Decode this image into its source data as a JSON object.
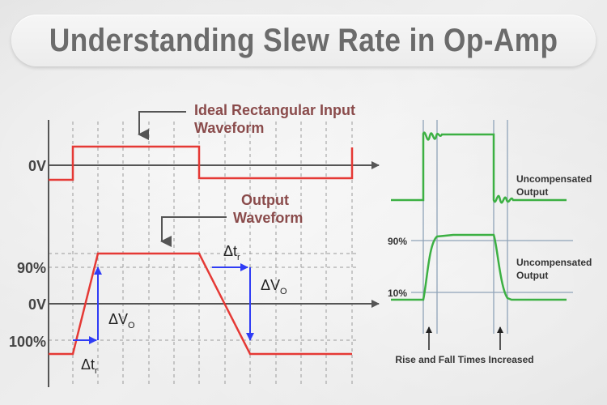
{
  "title": "Understanding Slew Rate in Op-Amp",
  "left": {
    "input_caption_line1": "Ideal Rectangular Input",
    "input_caption_line2": "Waveform",
    "output_caption_line1": "Output",
    "output_caption_line2": "Waveform",
    "label_0v_top": "0V",
    "label_90": "90%",
    "label_0v_bottom": "0V",
    "label_100": "100%",
    "delta_v": "ΔV",
    "delta_v_sub": "O",
    "delta_t": "Δt",
    "delta_t_sub": "r"
  },
  "right": {
    "uncomp_top_line1": "Uncompensated",
    "uncomp_top_line2": "Output",
    "uncomp_bottom_line1": "Uncompensated",
    "uncomp_bottom_line2": "Output",
    "label_90": "90%",
    "label_10": "10%",
    "caption": "Rise and Fall Times Increased"
  },
  "colors": {
    "signal_red": "#e53935",
    "signal_green": "#3cb043",
    "arrow_blue": "#2f3cf5",
    "caption_brown": "#8a4b4b",
    "axis": "#555555",
    "grid": "#9a9a9a"
  }
}
